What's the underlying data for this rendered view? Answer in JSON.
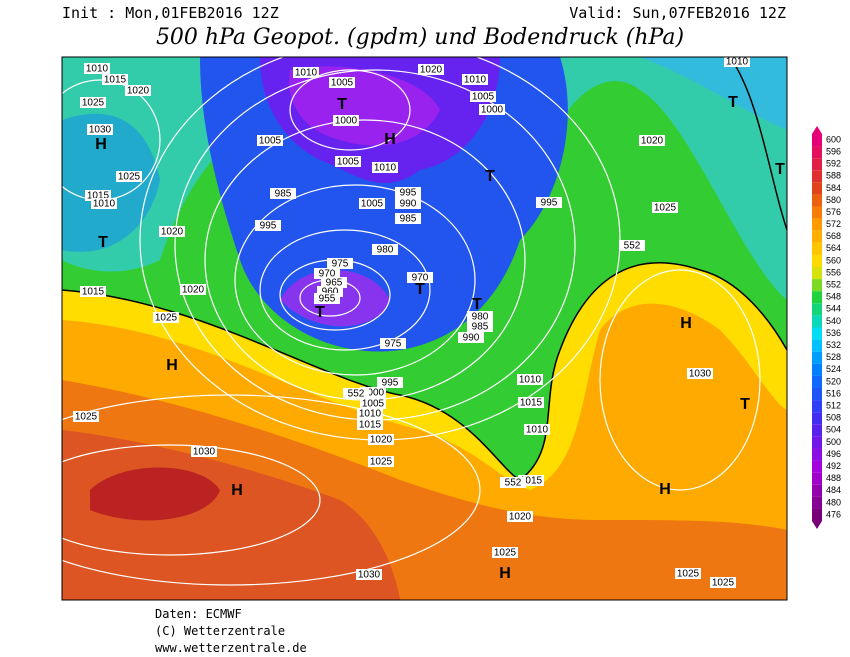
{
  "header": {
    "init": "Init : Mon,01FEB2016 12Z",
    "valid": "Valid: Sun,07FEB2016 12Z",
    "title": "500 hPa Geopot. (gpdm) und Bodendruck (hPa)"
  },
  "legend": {
    "levels": [
      600,
      596,
      592,
      588,
      584,
      580,
      576,
      572,
      568,
      564,
      560,
      556,
      552,
      548,
      544,
      540,
      536,
      532,
      528,
      524,
      520,
      516,
      512,
      508,
      504,
      500,
      496,
      492,
      488,
      484,
      480,
      476
    ]
  },
  "map": {
    "isobar_labels": [
      "1010",
      "1015",
      "1020",
      "1025",
      "1030",
      "1010",
      "1005",
      "1020",
      "1010",
      "1005",
      "1000",
      "1005",
      "1000",
      "1005",
      "1010",
      "1025",
      "985",
      "995",
      "990",
      "1005",
      "985",
      "995",
      "1020",
      "995",
      "1020",
      "1025",
      "1015",
      "1010",
      "980",
      "975",
      "970",
      "965",
      "960",
      "955",
      "970",
      "1015",
      "1020",
      "1025",
      "980",
      "985",
      "990",
      "975",
      "995",
      "1000",
      "1005",
      "1010",
      "1015",
      "1020",
      "1025",
      "1010",
      "1015",
      "1010",
      "1015",
      "1020",
      "1025",
      "1025",
      "1030",
      "1030",
      "1025",
      "1025",
      "1030",
      "1010",
      "552",
      "552",
      "552"
    ],
    "pressure_centers": [
      "H",
      "T",
      "H",
      "H",
      "T",
      "H",
      "T",
      "T",
      "T",
      "T",
      "H",
      "H",
      "H",
      "T",
      "T",
      "T"
    ]
  },
  "footer": {
    "source": "Daten: ECMWF",
    "copyright": "(C) Wetterzentrale",
    "url": "www.wetterzentrale.de"
  }
}
